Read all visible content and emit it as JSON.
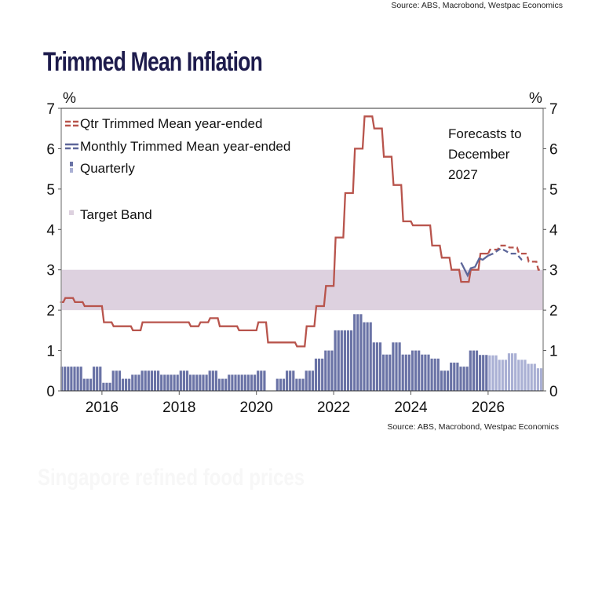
{
  "source_top": "Source: ABS, Macrobond, Westpac Economics",
  "source_bottom": "Source: ABS, Macrobond, Westpac Economics",
  "ghost_title": "Singapore refined food prices",
  "colors": {
    "qtr_line": "#b8544c",
    "monthly_line": "#5d6699",
    "bars_actual": "#6a73a6",
    "bars_forecast": "#aab0d4",
    "target_band": "#ddd1df",
    "title": "#1d1b4c"
  },
  "chart_data": {
    "type": "bar+line",
    "title": "Trimmed Mean Inflation",
    "ylabel_left": "%",
    "ylabel_right": "%",
    "ylim": [
      0,
      7
    ],
    "yticks": [
      "0",
      "1",
      "2",
      "3",
      "4",
      "5",
      "6",
      "7"
    ],
    "xticks": [
      "2016",
      "2018",
      "2020",
      "2022",
      "2024",
      "2026"
    ],
    "grid": false,
    "legend_placement": "top-left",
    "annotation": [
      "Forecasts to",
      "December",
      "2027"
    ],
    "target_band": {
      "name": "Target Band",
      "range": [
        2,
        3
      ]
    },
    "quarters": [
      "2014Q4",
      "2015Q1",
      "2015Q2",
      "2015Q3",
      "2015Q4",
      "2016Q1",
      "2016Q2",
      "2016Q3",
      "2016Q4",
      "2017Q1",
      "2017Q2",
      "2017Q3",
      "2017Q4",
      "2018Q1",
      "2018Q2",
      "2018Q3",
      "2018Q4",
      "2019Q1",
      "2019Q2",
      "2019Q3",
      "2019Q4",
      "2020Q1",
      "2020Q2",
      "2020Q3",
      "2020Q4",
      "2021Q1",
      "2021Q2",
      "2021Q3",
      "2021Q4",
      "2022Q1",
      "2022Q2",
      "2022Q3",
      "2022Q4",
      "2023Q1",
      "2023Q2",
      "2023Q3",
      "2023Q4",
      "2024Q1",
      "2024Q2",
      "2024Q3",
      "2024Q4",
      "2025Q1",
      "2025Q2",
      "2025Q3",
      "2025Q4",
      "2026Q1",
      "2026Q2",
      "2026Q3",
      "2026Q4",
      "2027Q1",
      "2027Q2"
    ],
    "forecast_from": "2026Q1",
    "series": [
      {
        "name": "Qtr Trimmed Mean year-ended",
        "type": "line",
        "values": [
          2.2,
          2.3,
          2.2,
          2.1,
          2.1,
          1.7,
          1.6,
          1.6,
          1.5,
          1.7,
          1.7,
          1.7,
          1.7,
          1.7,
          1.6,
          1.7,
          1.8,
          1.6,
          1.6,
          1.5,
          1.5,
          1.7,
          1.2,
          1.2,
          1.2,
          1.1,
          1.6,
          2.1,
          2.6,
          3.8,
          4.9,
          6.0,
          6.8,
          6.5,
          5.8,
          5.1,
          4.2,
          4.1,
          4.1,
          3.6,
          3.3,
          3.0,
          2.7,
          3.0,
          3.4,
          3.5,
          3.6,
          3.55,
          3.4,
          3.2,
          3.0
        ]
      },
      {
        "name": "Quarterly",
        "type": "bar",
        "values": [
          0.6,
          0.6,
          0.6,
          0.3,
          0.6,
          0.2,
          0.5,
          0.3,
          0.4,
          0.5,
          0.5,
          0.4,
          0.4,
          0.5,
          0.4,
          0.4,
          0.5,
          0.3,
          0.4,
          0.4,
          0.4,
          0.5,
          0.0,
          0.3,
          0.5,
          0.3,
          0.5,
          0.8,
          1.0,
          1.5,
          1.5,
          1.9,
          1.7,
          1.2,
          0.9,
          1.2,
          0.9,
          1.0,
          0.9,
          0.8,
          0.5,
          0.7,
          0.6,
          1.0,
          0.89,
          0.88,
          0.77,
          0.93,
          0.77,
          0.67,
          0.56
        ]
      },
      {
        "name": "Monthly Trimmed Mean year-ended",
        "type": "line",
        "x": [
          2025.3,
          2025.47,
          2025.55,
          2025.66,
          2025.77,
          2025.86,
          2026.0,
          2026.13,
          2026.33,
          2026.47,
          2026.57,
          2026.73,
          2026.87,
          2026.93
        ],
        "values": [
          3.18,
          2.86,
          3.04,
          3.07,
          3.28,
          3.25,
          3.35,
          3.4,
          3.53,
          3.46,
          3.4,
          3.4,
          3.25,
          3.22
        ],
        "forecast_from_x": 2026.0
      }
    ]
  }
}
